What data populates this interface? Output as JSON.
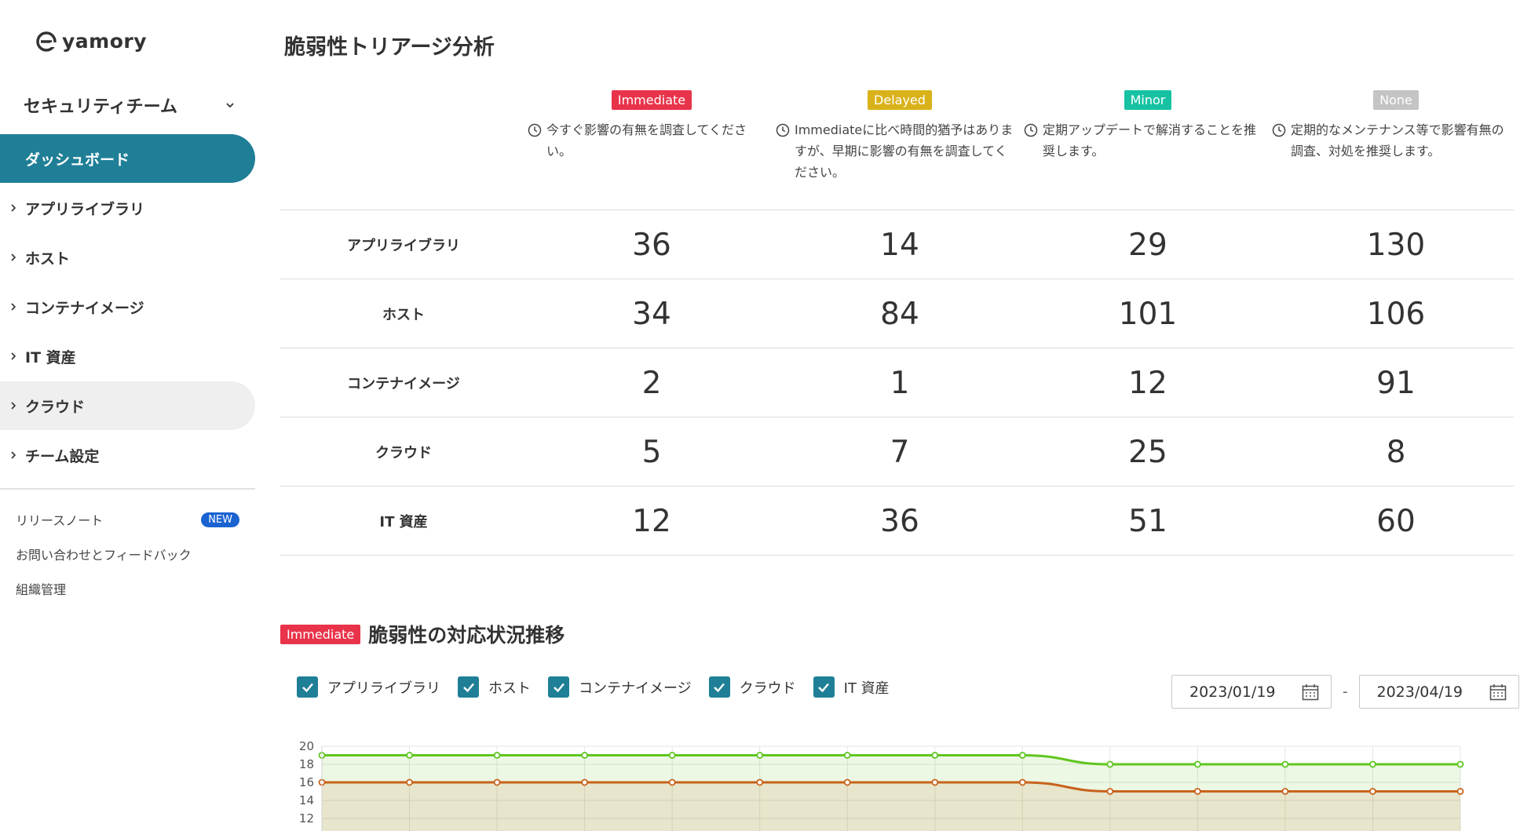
{
  "app": {
    "logo_text": "yamory",
    "team_name": "セキュリティチーム"
  },
  "sidebar": {
    "items": [
      {
        "label": "ダッシュボード",
        "active": true
      },
      {
        "label": "アプリライブラリ"
      },
      {
        "label": "ホスト"
      },
      {
        "label": "コンテナイメージ"
      },
      {
        "label": "IT 資産"
      },
      {
        "label": "クラウド"
      },
      {
        "label": "チーム設定"
      }
    ],
    "footer": [
      {
        "label": "リリースノート",
        "badge": "NEW"
      },
      {
        "label": "お問い合わせとフィードバック"
      },
      {
        "label": "組織管理"
      }
    ]
  },
  "page": {
    "title": "脆弱性トリアージ分析"
  },
  "triage": {
    "columns": [
      {
        "badge": "Immediate",
        "color": "#e8334a",
        "desc": "今すぐ影響の有無を調査してください。"
      },
      {
        "badge": "Delayed",
        "color": "#d9b21a",
        "desc": "Immediateに比べ時間的猶予はありますが、早期に影響の有無を調査してください。"
      },
      {
        "badge": "Minor",
        "color": "#16c2a3",
        "desc": "定期アップデートで解消することを推奨します。"
      },
      {
        "badge": "None",
        "color": "#c4c4c4",
        "desc": "定期的なメンテナンス等で影響有無の調査、対処を推奨します。"
      }
    ],
    "rows": [
      {
        "label": "アプリライブラリ",
        "values": [
          "36",
          "14",
          "29",
          "130"
        ]
      },
      {
        "label": "ホスト",
        "values": [
          "34",
          "84",
          "101",
          "106"
        ]
      },
      {
        "label": "コンテナイメージ",
        "values": [
          "2",
          "1",
          "12",
          "91"
        ]
      },
      {
        "label": "クラウド",
        "values": [
          "5",
          "7",
          "25",
          "8"
        ]
      },
      {
        "label": "IT 資産",
        "values": [
          "12",
          "36",
          "51",
          "60"
        ]
      }
    ]
  },
  "trend": {
    "badge": "Immediate",
    "title": "脆弱性の対応状況推移",
    "filters": [
      "アプリライブラリ",
      "ホスト",
      "コンテナイメージ",
      "クラウド",
      "IT 資産"
    ],
    "date_from": "2023/01/19",
    "date_separator": "-",
    "date_to": "2023/04/19"
  },
  "chart_data": {
    "type": "area",
    "x": [
      1,
      2,
      3,
      4,
      5,
      6,
      7,
      8,
      9,
      10,
      11,
      12,
      13,
      14
    ],
    "y_ticks": [
      20,
      18,
      16,
      14,
      12
    ],
    "ylim": [
      12,
      20
    ],
    "series": [
      {
        "color": "#5fc61e",
        "values": [
          19,
          19,
          19,
          19,
          19,
          19,
          19,
          19,
          19,
          18,
          18,
          18,
          18,
          18
        ]
      },
      {
        "color": "#c8621b",
        "values": [
          16,
          16,
          16,
          16,
          16,
          16,
          16,
          16,
          16,
          15,
          15,
          15,
          15,
          15
        ]
      }
    ]
  }
}
